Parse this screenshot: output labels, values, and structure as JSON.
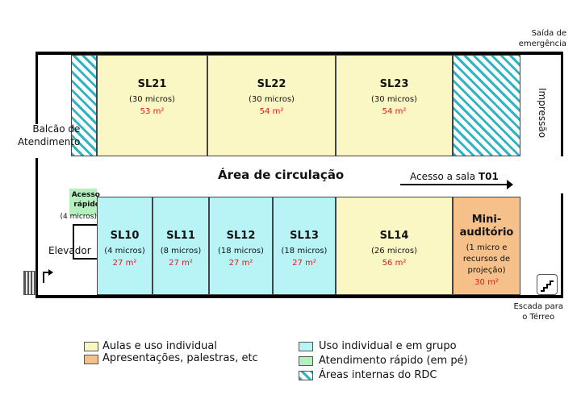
{
  "exits": {
    "emergency": "Saída de\nemergência",
    "stairs": "Escada para\no Térreo"
  },
  "labels": {
    "balcao": "Balcão de\nAtendimento",
    "impressao": "Impressão",
    "circulacao": "Área de circulação",
    "acesso_prefix": "Acesso a sala ",
    "acesso_room": "T01",
    "elevador": "Elevador"
  },
  "top_rooms": [
    {
      "name": "SL21",
      "micros": "(30 micros)",
      "area": "53 m²"
    },
    {
      "name": "SL22",
      "micros": "(30 micros)",
      "area": "54 m²"
    },
    {
      "name": "SL23",
      "micros": "(30 micros)",
      "area": "54 m²"
    }
  ],
  "quick_access": {
    "name": "Acesso\nrápido",
    "micros": "(4 micros)"
  },
  "bottom_rooms": [
    {
      "name": "SL10",
      "micros": "(4 micros)",
      "area": "27 m²"
    },
    {
      "name": "SL11",
      "micros": "(8 micros)",
      "area": "27 m²"
    },
    {
      "name": "SL12",
      "micros": "(18 micros)",
      "area": "27 m²"
    },
    {
      "name": "SL13",
      "micros": "(18 micros)",
      "area": "27 m²"
    },
    {
      "name": "SL14",
      "micros": "(26 micros)",
      "area": "56 m²"
    }
  ],
  "mini_auditorio": {
    "name": "Mini-\nauditório",
    "desc": "(1 micro e\nrecursos de\nprojeção)",
    "area": "30 m²"
  },
  "legend": [
    {
      "label": "Aulas e uso individual",
      "color": "#fbf7c5"
    },
    {
      "label": "Apresentações, palestras, etc",
      "color": "#f6c08a"
    },
    {
      "label": "Uso individual e em grupo",
      "color": "#b8f4f6"
    },
    {
      "label": "Atendimento rápido (em pé)",
      "color": "#b6efbf"
    },
    {
      "label": "Áreas internas do RDC",
      "color": "hatch"
    }
  ],
  "colors": {
    "area_text": "#e01818",
    "wall": "#000000"
  }
}
